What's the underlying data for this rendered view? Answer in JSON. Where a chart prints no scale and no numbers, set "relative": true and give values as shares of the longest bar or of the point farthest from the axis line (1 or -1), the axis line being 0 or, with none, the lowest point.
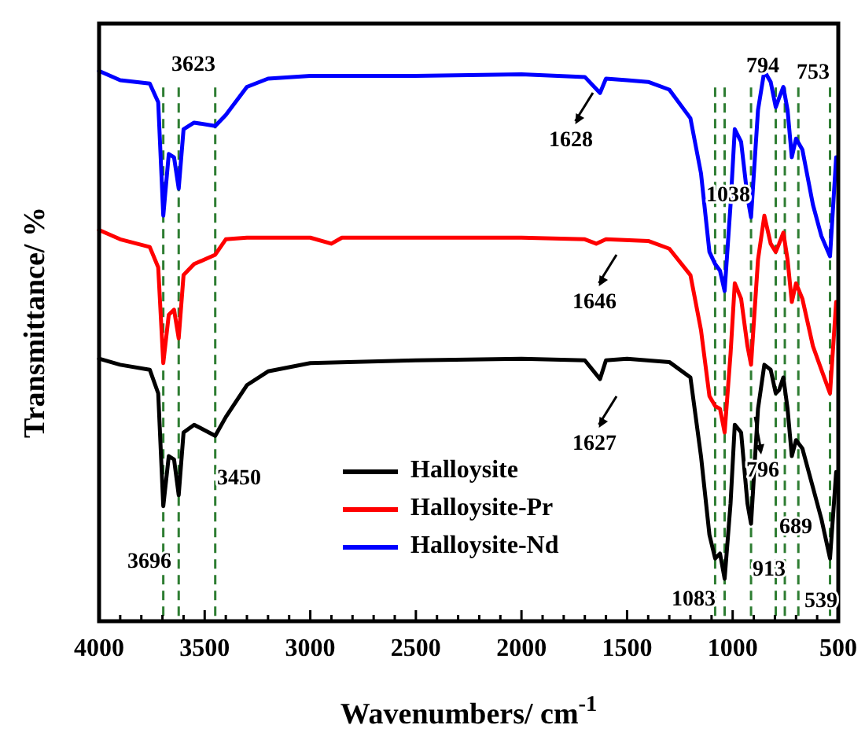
{
  "chart_data": {
    "type": "line",
    "relative": true,
    "xlabel": "Wavenumbers/ cm$^{-1}$",
    "ylabel": "Transmittance/ %",
    "xlim": [
      4000,
      500
    ],
    "xticks": [
      4000,
      3500,
      3000,
      2500,
      2000,
      1500,
      1000,
      500,
      {
        "value": 3900,
        "label": null
      },
      {
        "value": 3800,
        "label": null
      },
      {
        "value": 3700,
        "label": null
      },
      {
        "value": 3600,
        "label": null
      },
      {
        "value": 3400,
        "label": null
      },
      {
        "value": 3300,
        "label": null
      },
      {
        "value": 3200,
        "label": null
      },
      {
        "value": 3100,
        "label": null
      },
      {
        "value": 2900,
        "label": null
      },
      {
        "value": 2800,
        "label": null
      },
      {
        "value": 2700,
        "label": null
      },
      {
        "value": 2600,
        "label": null
      },
      {
        "value": 2400,
        "label": null
      },
      {
        "value": 2300,
        "label": null
      },
      {
        "value": 2200,
        "label": null
      },
      {
        "value": 2100,
        "label": null
      },
      {
        "value": 1900,
        "label": null
      },
      {
        "value": 1800,
        "label": null
      },
      {
        "value": 1700,
        "label": null
      },
      {
        "value": 1600,
        "label": null
      },
      {
        "value": 1400,
        "label": null
      },
      {
        "value": 1300,
        "label": null
      },
      {
        "value": 1200,
        "label": null
      },
      {
        "value": 1100,
        "label": null
      },
      {
        "value": 900,
        "label": null
      },
      {
        "value": 800,
        "label": null
      },
      {
        "value": 700,
        "label": null
      },
      {
        "value": 600,
        "label": null
      }
    ],
    "tick_labels": "x",
    "legend": "bottom",
    "grid": false,
    "marker": "none",
    "line_style": "solid",
    "series": [
      {
        "name": "Halloysite",
        "color": "#000000",
        "x": [
          4000,
          3900,
          3760,
          3720,
          3696,
          3670,
          3645,
          3623,
          3600,
          3550,
          3450,
          3400,
          3300,
          3200,
          3000,
          2500,
          2000,
          1700,
          1628,
          1600,
          1500,
          1300,
          1200,
          1150,
          1110,
          1083,
          1060,
          1038,
          1010,
          990,
          960,
          930,
          913,
          880,
          850,
          820,
          796,
          780,
          760,
          740,
          720,
          700,
          670,
          620,
          580,
          539,
          510
        ],
        "values": [
          0.477,
          0.466,
          0.457,
          0.414,
          0.209,
          0.3,
          0.294,
          0.229,
          0.343,
          0.357,
          0.337,
          0.371,
          0.429,
          0.454,
          0.469,
          0.474,
          0.477,
          0.474,
          0.44,
          0.474,
          0.477,
          0.471,
          0.443,
          0.3,
          0.157,
          0.114,
          0.123,
          0.077,
          0.214,
          0.357,
          0.343,
          0.214,
          0.177,
          0.386,
          0.466,
          0.457,
          0.414,
          0.42,
          0.443,
          0.386,
          0.3,
          0.329,
          0.314,
          0.243,
          0.186,
          0.114,
          0.271
        ]
      },
      {
        "name": "Halloysite-Pr",
        "color": "#ff0000",
        "x": [
          4000,
          3900,
          3760,
          3720,
          3696,
          3670,
          3645,
          3623,
          3600,
          3550,
          3450,
          3400,
          3300,
          3000,
          2900,
          2850,
          2500,
          2000,
          1700,
          1646,
          1600,
          1400,
          1300,
          1200,
          1150,
          1110,
          1083,
          1060,
          1038,
          1010,
          990,
          960,
          930,
          913,
          880,
          850,
          820,
          796,
          780,
          760,
          740,
          720,
          700,
          670,
          620,
          580,
          539,
          510
        ],
        "values": [
          0.711,
          0.694,
          0.68,
          0.643,
          0.469,
          0.557,
          0.566,
          0.514,
          0.629,
          0.649,
          0.666,
          0.694,
          0.697,
          0.697,
          0.686,
          0.697,
          0.697,
          0.697,
          0.694,
          0.686,
          0.694,
          0.691,
          0.677,
          0.629,
          0.529,
          0.409,
          0.391,
          0.386,
          0.343,
          0.486,
          0.614,
          0.586,
          0.5,
          0.466,
          0.657,
          0.737,
          0.686,
          0.671,
          0.686,
          0.706,
          0.657,
          0.58,
          0.614,
          0.586,
          0.5,
          0.457,
          0.414,
          0.58
        ]
      },
      {
        "name": "Halloysite-Nd",
        "color": "#0000ff",
        "x": [
          4000,
          3900,
          3760,
          3720,
          3696,
          3670,
          3645,
          3623,
          3600,
          3550,
          3450,
          3400,
          3300,
          3200,
          3000,
          2500,
          2000,
          1700,
          1628,
          1600,
          1500,
          1400,
          1300,
          1200,
          1150,
          1110,
          1083,
          1060,
          1038,
          1010,
          990,
          960,
          930,
          913,
          880,
          850,
          820,
          796,
          780,
          760,
          740,
          720,
          700,
          670,
          620,
          580,
          539,
          510
        ],
        "values": [
          1,
          0.983,
          0.977,
          0.943,
          0.737,
          0.849,
          0.843,
          0.786,
          0.894,
          0.906,
          0.9,
          0.92,
          0.971,
          0.986,
          0.991,
          0.991,
          0.994,
          0.989,
          0.96,
          0.986,
          0.983,
          0.98,
          0.966,
          0.914,
          0.814,
          0.671,
          0.649,
          0.637,
          0.6,
          0.757,
          0.894,
          0.871,
          0.771,
          0.734,
          0.929,
          1,
          0.98,
          0.934,
          0.951,
          0.971,
          0.929,
          0.843,
          0.877,
          0.857,
          0.757,
          0.7,
          0.663,
          0.843
        ]
      }
    ],
    "ref_lines": [
      {
        "axis": "x",
        "value": 3696,
        "color": "#2e7d32",
        "line_style": "dashed"
      },
      {
        "axis": "x",
        "value": 3623,
        "color": "#2e7d32",
        "line_style": "dashed"
      },
      {
        "axis": "x",
        "value": 3450,
        "color": "#2e7d32",
        "line_style": "dashed"
      },
      {
        "axis": "x",
        "value": 1083,
        "color": "#2e7d32",
        "line_style": "dashed"
      },
      {
        "axis": "x",
        "value": 1038,
        "color": "#2e7d32",
        "line_style": "dashed"
      },
      {
        "axis": "x",
        "value": 913,
        "color": "#2e7d32",
        "line_style": "dashed"
      },
      {
        "axis": "x",
        "value": 796,
        "color": "#2e7d32",
        "line_style": "dashed"
      },
      {
        "axis": "x",
        "value": 753,
        "color": "#2e7d32",
        "line_style": "dashed"
      },
      {
        "axis": "x",
        "value": 689,
        "color": "#2e7d32",
        "line_style": "dashed"
      },
      {
        "axis": "x",
        "value": 539,
        "color": "#2e7d32",
        "line_style": "dashed"
      }
    ],
    "annotations": [
      "3623",
      "3696",
      "3450",
      "1628",
      "1646",
      "1627",
      "1038",
      "794",
      "753",
      "796",
      "689",
      "913",
      "1083",
      "539"
    ]
  }
}
